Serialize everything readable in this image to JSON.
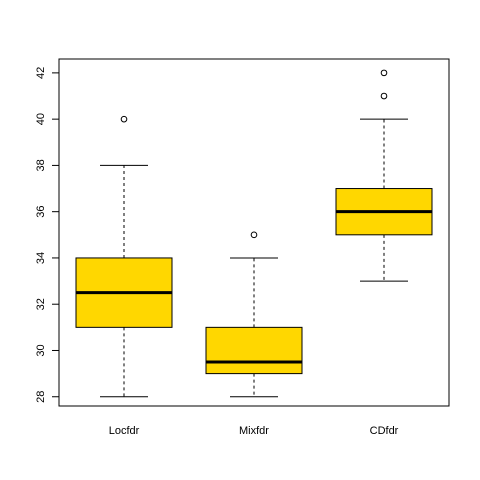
{
  "chart_data": {
    "type": "boxplot",
    "title": "",
    "xlabel": "",
    "ylabel": "",
    "categories": [
      "Locfdr",
      "Mixfdr",
      "CDfdr"
    ],
    "ylim": [
      27.6,
      42.6
    ],
    "yticks": [
      "28",
      "30",
      "32",
      "34",
      "36",
      "38",
      "40",
      "42"
    ],
    "box_fill": "#FFD700",
    "boxes": [
      {
        "label": "Locfdr",
        "whisker_low": 28,
        "q1": 31,
        "median": 32.5,
        "q3": 34,
        "whisker_high": 38,
        "outliers": [
          40
        ]
      },
      {
        "label": "Mixfdr",
        "whisker_low": 28,
        "q1": 29,
        "median": 29.5,
        "q3": 31,
        "whisker_high": 34,
        "outliers": [
          35
        ]
      },
      {
        "label": "CDfdr",
        "whisker_low": 33,
        "q1": 35,
        "median": 36,
        "q3": 37,
        "whisker_high": 40,
        "outliers": [
          41,
          42
        ]
      }
    ],
    "grid": false,
    "legend": "none"
  }
}
